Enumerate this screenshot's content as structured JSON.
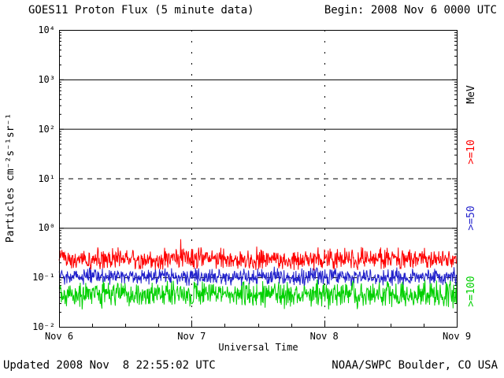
{
  "header": {
    "title": "GOES11 Proton Flux (5 minute data)",
    "begin": "Begin: 2008 Nov 6 0000 UTC"
  },
  "footer": {
    "updated": "Updated 2008 Nov  8 22:55:02 UTC",
    "source": "NOAA/SWPC Boulder, CO USA"
  },
  "axes": {
    "ylabel": "Particles cm⁻²s⁻¹sr⁻¹",
    "xlabel": "Universal Time",
    "x_ticks": [
      "Nov 6",
      "Nov 7",
      "Nov 8",
      "Nov 9"
    ],
    "y_ticks": [
      "10⁴",
      "10³",
      "10²",
      "10¹",
      "10⁰",
      "10⁻¹",
      "10⁻²"
    ]
  },
  "right_labels": [
    {
      "text": "MeV",
      "color": "#000000"
    },
    {
      "text": ">=10",
      "color": "#ff0000"
    },
    {
      "text": ">=50",
      "color": "#2222cc"
    },
    {
      "text": ">=100",
      "color": "#00d000"
    }
  ],
  "chart_data": {
    "type": "line",
    "title": "GOES11 Proton Flux (5 minute data)",
    "xlabel": "Universal Time",
    "ylabel": "Particles cm^-2 s^-1 sr^-1",
    "x_start": "2008 Nov 6 0000 UTC",
    "x_end": "2008 Nov 9 0000 UTC",
    "x_tick_labels": [
      "Nov 6",
      "Nov 7",
      "Nov 8",
      "Nov 9"
    ],
    "y_scale": "log",
    "ylim": [
      0.01,
      10000
    ],
    "cadence_minutes": 5,
    "points_per_series": 864,
    "series": [
      {
        "name": ">=10 MeV",
        "color": "#ff0000",
        "mean_flux": 0.22,
        "min_flux": 0.13,
        "max_flux": 0.42,
        "spike_max": 0.6
      },
      {
        "name": ">=50 MeV",
        "color": "#2222cc",
        "mean_flux": 0.1,
        "min_flux": 0.065,
        "max_flux": 0.16,
        "spike_max": 0.19
      },
      {
        "name": ">=100 MeV",
        "color": "#00d000",
        "mean_flux": 0.046,
        "min_flux": 0.022,
        "max_flux": 0.095,
        "spike_max": 0.11
      }
    ],
    "gridlines": {
      "solid_y": [
        1000,
        100,
        1
      ],
      "dashed_y": [
        10,
        0.1
      ],
      "dotted_x_labels": [
        "Nov 7",
        "Nov 8"
      ]
    }
  }
}
